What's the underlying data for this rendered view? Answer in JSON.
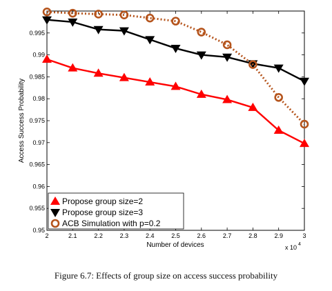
{
  "caption": "Figure 6.7: Effects of group size on access success probability",
  "chart_data": {
    "type": "line",
    "xlabel": "Number of devices",
    "ylabel": "Access Success Probability",
    "x_multiplier_label": "x 10",
    "x_multiplier_exponent": "4",
    "x": [
      2,
      2.1,
      2.2,
      2.3,
      2.4,
      2.5,
      2.6,
      2.7,
      2.8,
      2.9,
      3
    ],
    "xticks": [
      "2",
      "2.1",
      "2.2",
      "2.3",
      "2.4",
      "2.5",
      "2.6",
      "2.7",
      "2.8",
      "2.9",
      "3"
    ],
    "yticks": [
      "0.95",
      "0.955",
      "0.96",
      "0.965",
      "0.97",
      "0.975",
      "0.98",
      "0.985",
      "0.99",
      "0.995"
    ],
    "xlim": [
      2,
      3
    ],
    "ylim": [
      0.95,
      1.0
    ],
    "grid": false,
    "legend_position": "bottom-left",
    "series": [
      {
        "name": "Propose group size=2",
        "color": "#ff0000",
        "marker": "triangle-up",
        "line": "solid",
        "values": [
          0.989,
          0.987,
          0.9858,
          0.9848,
          0.9838,
          0.9828,
          0.981,
          0.9798,
          0.978,
          0.9728,
          0.9698
        ]
      },
      {
        "name": "Propose group size=3",
        "color": "#000000",
        "marker": "triangle-down",
        "line": "solid",
        "values": [
          0.998,
          0.9975,
          0.9958,
          0.9955,
          0.9935,
          0.9915,
          0.99,
          0.9895,
          0.988,
          0.987,
          0.984
        ]
      },
      {
        "name": "ACB Simulation with p=0.2",
        "color": "#b5541c",
        "marker": "circle",
        "line": "dotted",
        "values": [
          0.9998,
          0.9995,
          0.9993,
          0.9991,
          0.9984,
          0.9977,
          0.9952,
          0.9923,
          0.9878,
          0.9803,
          0.9742
        ]
      }
    ]
  }
}
